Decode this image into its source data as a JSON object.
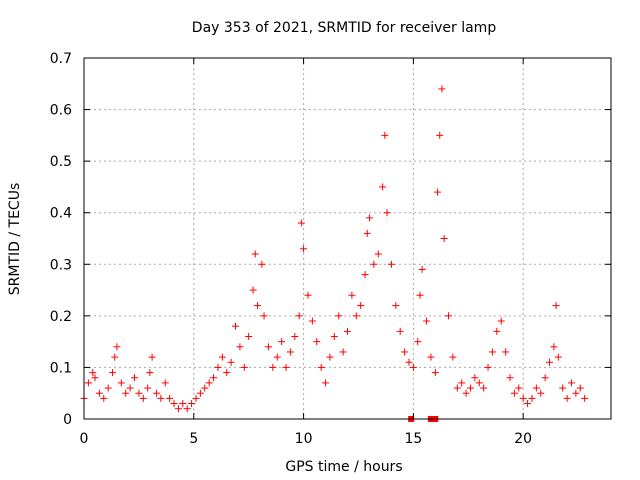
{
  "chart_data": {
    "type": "scatter",
    "title": "Day 353 of 2021, SRMTID for receiver lamp",
    "xlabel": "GPS time / hours",
    "ylabel": "SRMTID / TECUs",
    "xlim": [
      0,
      24
    ],
    "ylim": [
      0,
      0.7
    ],
    "x_ticks": [
      {
        "value": 0,
        "label": "0"
      },
      {
        "value": 5,
        "label": "5"
      },
      {
        "value": 10,
        "label": "10"
      },
      {
        "value": 15,
        "label": "15"
      },
      {
        "value": 20,
        "label": "20"
      }
    ],
    "y_ticks": [
      {
        "value": 0,
        "label": "0"
      },
      {
        "value": 0.1,
        "label": "0.1"
      },
      {
        "value": 0.2,
        "label": "0.2"
      },
      {
        "value": 0.3,
        "label": "0.3"
      },
      {
        "value": 0.4,
        "label": "0.4"
      },
      {
        "value": 0.5,
        "label": "0.5"
      },
      {
        "value": 0.6,
        "label": "0.6"
      },
      {
        "value": 0.7,
        "label": "0.7"
      }
    ],
    "grid": true,
    "marker": "+",
    "color": "#ff0000",
    "series": [
      {
        "name": "SRMTID",
        "x": [
          0.0,
          0.2,
          0.4,
          0.5,
          0.7,
          0.9,
          1.1,
          1.3,
          1.4,
          1.5,
          1.7,
          1.9,
          2.1,
          2.3,
          2.5,
          2.7,
          2.9,
          3.0,
          3.1,
          3.3,
          3.5,
          3.7,
          3.9,
          4.1,
          4.3,
          4.5,
          4.7,
          4.9,
          5.1,
          5.3,
          5.5,
          5.7,
          5.9,
          6.1,
          6.3,
          6.5,
          6.7,
          6.9,
          7.1,
          7.3,
          7.5,
          7.7,
          7.8,
          7.9,
          8.1,
          8.2,
          8.4,
          8.6,
          8.8,
          9.0,
          9.2,
          9.4,
          9.6,
          9.8,
          9.9,
          10.0,
          10.2,
          10.4,
          10.6,
          10.8,
          11.0,
          11.2,
          11.4,
          11.6,
          11.8,
          12.0,
          12.2,
          12.4,
          12.6,
          12.8,
          12.9,
          13.0,
          13.2,
          13.4,
          13.6,
          13.7,
          13.8,
          14.0,
          14.2,
          14.4,
          14.6,
          14.8,
          15.0,
          15.2,
          15.3,
          15.4,
          15.6,
          15.8,
          16.0,
          16.1,
          16.2,
          16.3,
          16.4,
          16.6,
          16.8,
          17.0,
          17.2,
          17.4,
          17.6,
          17.8,
          18.0,
          18.2,
          18.4,
          18.6,
          18.8,
          19.0,
          19.2,
          19.4,
          19.6,
          19.8,
          20.0,
          20.2,
          20.4,
          20.6,
          20.8,
          21.0,
          21.2,
          21.4,
          21.5,
          21.6,
          21.8,
          22.0,
          22.2,
          22.4,
          22.6,
          22.8
        ],
        "y": [
          0.04,
          0.07,
          0.09,
          0.08,
          0.05,
          0.04,
          0.06,
          0.09,
          0.12,
          0.14,
          0.07,
          0.05,
          0.06,
          0.08,
          0.05,
          0.04,
          0.06,
          0.09,
          0.12,
          0.05,
          0.04,
          0.07,
          0.04,
          0.03,
          0.02,
          0.03,
          0.02,
          0.03,
          0.04,
          0.05,
          0.06,
          0.07,
          0.08,
          0.1,
          0.12,
          0.09,
          0.11,
          0.18,
          0.14,
          0.1,
          0.16,
          0.25,
          0.32,
          0.22,
          0.3,
          0.2,
          0.14,
          0.1,
          0.12,
          0.15,
          0.1,
          0.13,
          0.16,
          0.2,
          0.38,
          0.33,
          0.24,
          0.19,
          0.15,
          0.1,
          0.07,
          0.12,
          0.16,
          0.2,
          0.13,
          0.17,
          0.24,
          0.2,
          0.22,
          0.28,
          0.36,
          0.39,
          0.3,
          0.32,
          0.45,
          0.55,
          0.4,
          0.3,
          0.22,
          0.17,
          0.13,
          0.11,
          0.1,
          0.15,
          0.24,
          0.29,
          0.19,
          0.12,
          0.09,
          0.44,
          0.55,
          0.64,
          0.35,
          0.2,
          0.12,
          0.06,
          0.07,
          0.05,
          0.06,
          0.08,
          0.07,
          0.06,
          0.1,
          0.13,
          0.17,
          0.19,
          0.13,
          0.08,
          0.05,
          0.06,
          0.04,
          0.03,
          0.04,
          0.06,
          0.05,
          0.08,
          0.11,
          0.14,
          0.22,
          0.12,
          0.06,
          0.04,
          0.07,
          0.05,
          0.06,
          0.04
        ],
        "x_extra_markers": [
          14.9,
          15.8,
          16.0
        ]
      }
    ]
  }
}
